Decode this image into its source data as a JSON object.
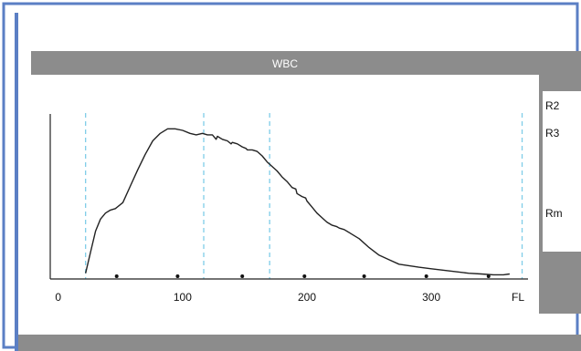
{
  "chart_data": {
    "type": "line",
    "title": "WBC",
    "xlabel": "FL",
    "ylabel": "",
    "xlim": [
      -2,
      366
    ],
    "ylim": [
      0,
      100
    ],
    "x_ticks": [
      0,
      100,
      200,
      300
    ],
    "x_tick_labels": [
      "0",
      "100",
      "200",
      "300"
    ],
    "xlabel_text": "FL",
    "thresholds": [
      22,
      117,
      170,
      373
    ],
    "side_labels": [
      "R2",
      "R3",
      "Rm"
    ],
    "axis_dots_x": [
      47,
      96,
      148,
      198,
      246,
      296,
      346
    ],
    "grid": false,
    "legend": "none",
    "colors": {
      "frame": "#5b7fc4",
      "header": "#8c8c8c",
      "side_panel": "#8c8c8c",
      "curve": "#222222",
      "threshold": "#7fcde8"
    },
    "series": [
      {
        "x": [
          22,
          26,
          30,
          34,
          38,
          42,
          46,
          52,
          58,
          64,
          70,
          76,
          82,
          88,
          94,
          100,
          106,
          111,
          116,
          120,
          124,
          127,
          128,
          132,
          136,
          139,
          140,
          144,
          148,
          151,
          152,
          156,
          160,
          164,
          168,
          172,
          176,
          180,
          184,
          188,
          191,
          192,
          196,
          199,
          200,
          204,
          208,
          212,
          216,
          220,
          224,
          226,
          230,
          236,
          242,
          250,
          258,
          266,
          274,
          282,
          290,
          300,
          310,
          320,
          330,
          340,
          350,
          358,
          363
        ],
        "y": [
          2,
          16,
          30,
          38,
          42,
          44,
          45,
          49,
          60,
          71,
          81,
          90,
          95,
          98,
          98,
          97,
          95,
          94,
          95,
          94,
          94,
          91,
          93,
          91,
          90,
          88,
          89,
          88,
          86,
          85,
          84,
          84,
          83,
          80,
          76,
          73,
          70,
          66,
          63,
          59,
          58,
          55,
          53,
          52,
          50,
          46,
          42,
          39,
          36,
          34,
          33,
          32,
          31,
          28,
          25,
          19,
          14,
          11,
          8,
          7,
          6,
          5,
          4,
          3,
          2,
          1.5,
          1,
          1,
          1.5
        ]
      }
    ]
  }
}
